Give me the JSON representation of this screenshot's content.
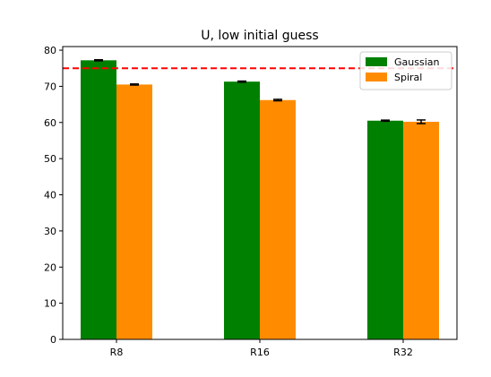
{
  "chart_data": {
    "type": "bar",
    "title": "U, low initial guess",
    "xlabel": "",
    "ylabel": "",
    "categories": [
      "R8",
      "R16",
      "R32"
    ],
    "ylim": [
      0,
      81
    ],
    "yticks": [
      0,
      10,
      20,
      30,
      40,
      50,
      60,
      70,
      80
    ],
    "grid": false,
    "legend_position": "top-right",
    "series": [
      {
        "name": "Gaussian",
        "color": "#008000",
        "values": [
          77.2,
          71.3,
          60.5
        ],
        "errors": [
          0.15,
          0.15,
          0.15
        ]
      },
      {
        "name": "Spiral",
        "color": "#ff8c00",
        "values": [
          70.5,
          66.2,
          60.2
        ],
        "errors": [
          0.15,
          0.2,
          0.5
        ]
      }
    ],
    "reference_line": {
      "value": 75,
      "color": "#ff0000",
      "style": "dashed"
    }
  }
}
